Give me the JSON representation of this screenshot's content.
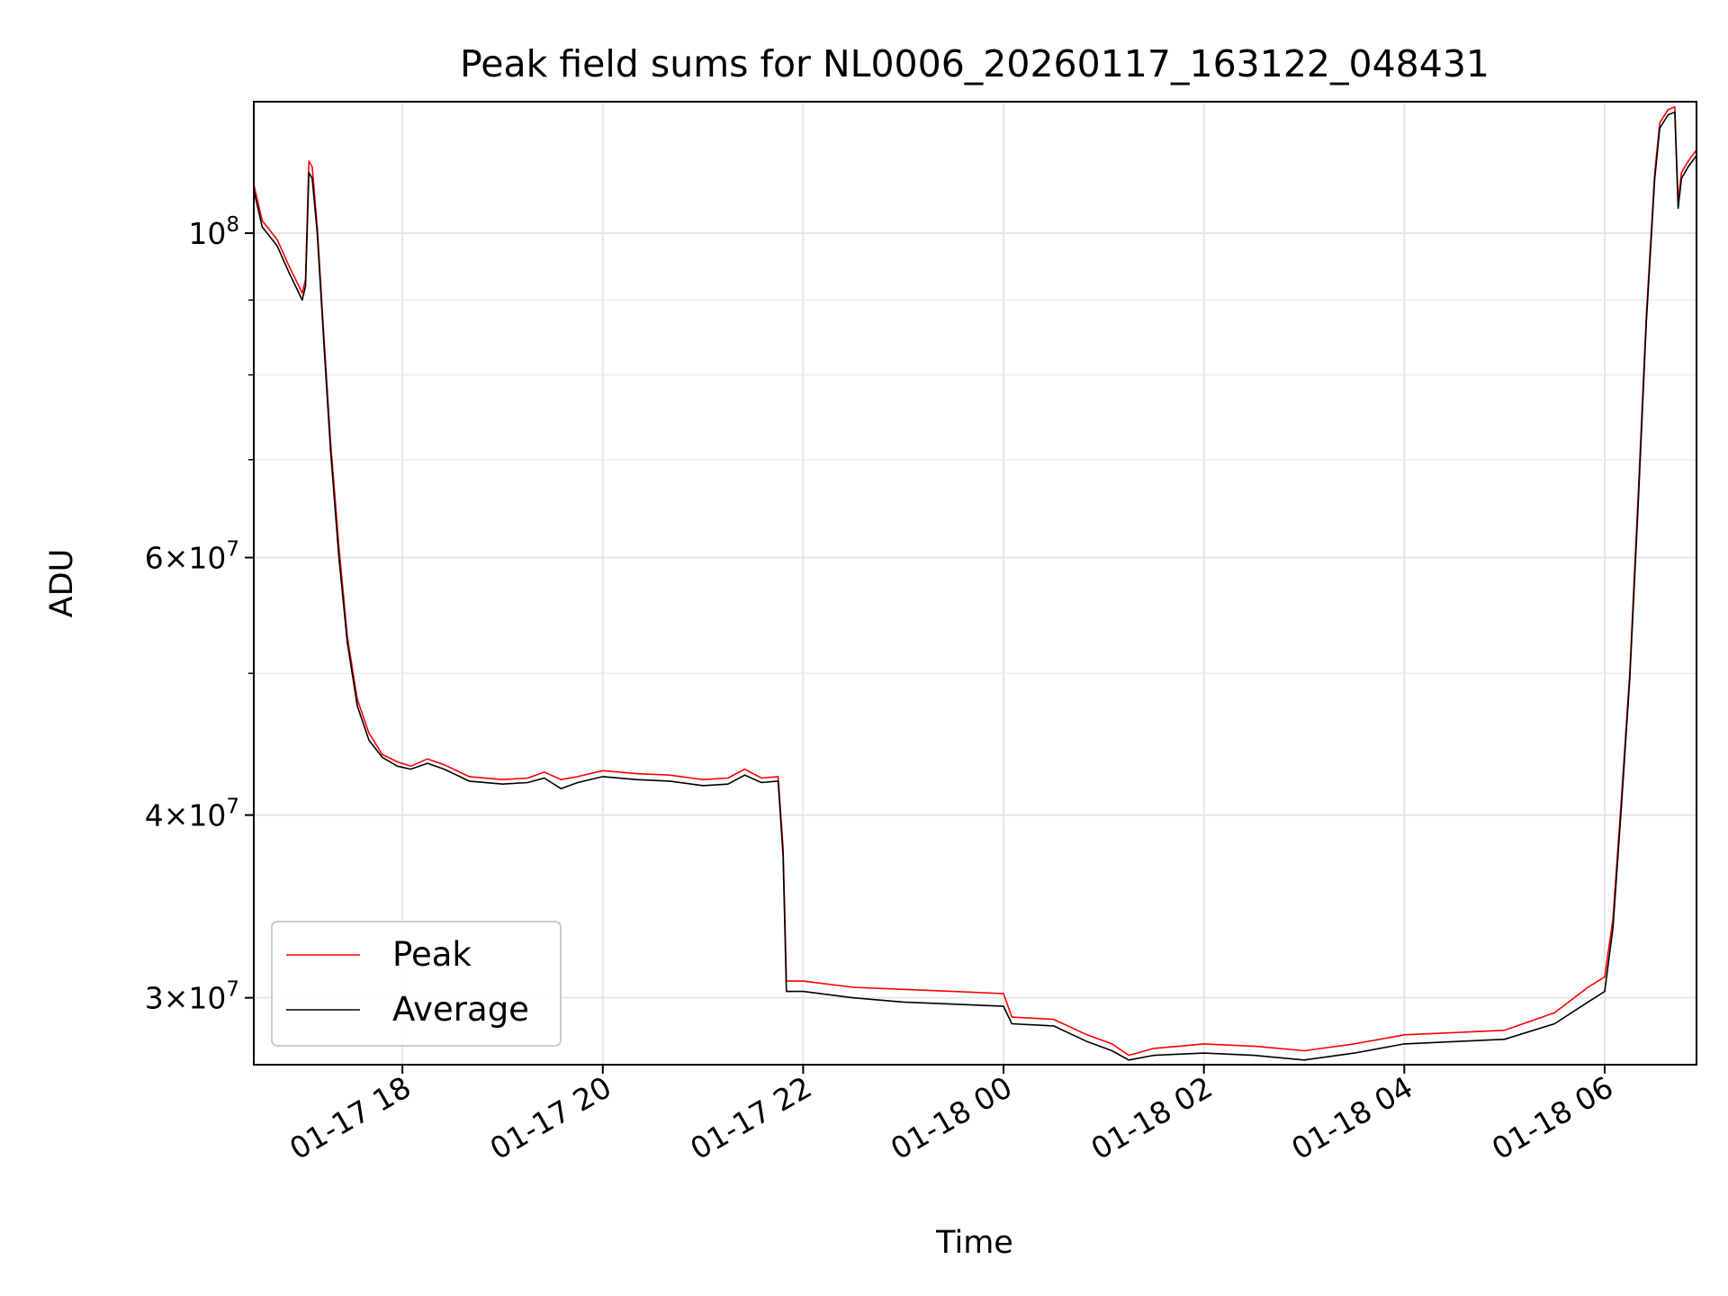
{
  "chart_data": {
    "type": "line",
    "title": "Peak field sums for NL0006_20260117_163122_048431",
    "xlabel": "Time",
    "ylabel": "ADU",
    "y_scale": "log",
    "ylim": [
      27000000,
      123000000
    ],
    "xlim": [
      "2026-01-17 16:31",
      "2026-01-18 06:55"
    ],
    "grid": true,
    "legend_position": "lower-left",
    "x_ticks": [
      {
        "t": "2026-01-17 18:00",
        "label": "01-17 18"
      },
      {
        "t": "2026-01-17 20:00",
        "label": "01-17 20"
      },
      {
        "t": "2026-01-17 22:00",
        "label": "01-17 22"
      },
      {
        "t": "2026-01-18 00:00",
        "label": "01-18 00"
      },
      {
        "t": "2026-01-18 02:00",
        "label": "01-18 02"
      },
      {
        "t": "2026-01-18 04:00",
        "label": "01-18 04"
      },
      {
        "t": "2026-01-18 06:00",
        "label": "01-18 06"
      }
    ],
    "y_ticks": [
      {
        "value": 30000000,
        "mantissa": "3",
        "exp": "7"
      },
      {
        "value": 40000000,
        "mantissa": "4",
        "exp": "7"
      },
      {
        "value": 60000000,
        "mantissa": "6",
        "exp": "7"
      },
      {
        "value": 100000000,
        "mantissa": "",
        "exp": "8"
      }
    ],
    "y_minor_ticks": [
      50000000,
      70000000,
      80000000,
      90000000
    ],
    "series": [
      {
        "name": "Peak",
        "color": "#ff0000",
        "points": [
          [
            "2026-01-17 16:31",
            108000000
          ],
          [
            "2026-01-17 16:36",
            102000000
          ],
          [
            "2026-01-17 16:45",
            99000000
          ],
          [
            "2026-01-17 16:52",
            95000000
          ],
          [
            "2026-01-17 16:58",
            92000000
          ],
          [
            "2026-01-17 17:00",
            91000000
          ],
          [
            "2026-01-17 17:02",
            93000000
          ],
          [
            "2026-01-17 17:04",
            112000000
          ],
          [
            "2026-01-17 17:06",
            111000000
          ],
          [
            "2026-01-17 17:09",
            101000000
          ],
          [
            "2026-01-17 17:13",
            85000000
          ],
          [
            "2026-01-17 17:17",
            72000000
          ],
          [
            "2026-01-17 17:22",
            61000000
          ],
          [
            "2026-01-17 17:27",
            53000000
          ],
          [
            "2026-01-17 17:33",
            48000000
          ],
          [
            "2026-01-17 17:40",
            45500000
          ],
          [
            "2026-01-17 17:48",
            44000000
          ],
          [
            "2026-01-17 17:57",
            43500000
          ],
          [
            "2026-01-17 18:05",
            43200000
          ],
          [
            "2026-01-17 18:15",
            43700000
          ],
          [
            "2026-01-17 18:25",
            43300000
          ],
          [
            "2026-01-17 18:40",
            42500000
          ],
          [
            "2026-01-17 19:00",
            42300000
          ],
          [
            "2026-01-17 19:15",
            42400000
          ],
          [
            "2026-01-17 19:25",
            42800000
          ],
          [
            "2026-01-17 19:35",
            42300000
          ],
          [
            "2026-01-17 19:45",
            42500000
          ],
          [
            "2026-01-17 20:00",
            42900000
          ],
          [
            "2026-01-17 20:20",
            42700000
          ],
          [
            "2026-01-17 20:40",
            42600000
          ],
          [
            "2026-01-17 21:00",
            42300000
          ],
          [
            "2026-01-17 21:15",
            42400000
          ],
          [
            "2026-01-17 21:25",
            43000000
          ],
          [
            "2026-01-17 21:35",
            42400000
          ],
          [
            "2026-01-17 21:45",
            42500000
          ],
          [
            "2026-01-17 21:48",
            38000000
          ],
          [
            "2026-01-17 21:50",
            30800000
          ],
          [
            "2026-01-17 22:00",
            30800000
          ],
          [
            "2026-01-17 22:30",
            30500000
          ],
          [
            "2026-01-17 23:00",
            30400000
          ],
          [
            "2026-01-17 23:30",
            30300000
          ],
          [
            "2026-01-18 00:00",
            30200000
          ],
          [
            "2026-01-18 00:05",
            29100000
          ],
          [
            "2026-01-18 00:30",
            29000000
          ],
          [
            "2026-01-18 00:50",
            28300000
          ],
          [
            "2026-01-18 01:05",
            27900000
          ],
          [
            "2026-01-18 01:15",
            27400000
          ],
          [
            "2026-01-18 01:30",
            27700000
          ],
          [
            "2026-01-18 02:00",
            27900000
          ],
          [
            "2026-01-18 02:30",
            27800000
          ],
          [
            "2026-01-18 03:00",
            27600000
          ],
          [
            "2026-01-18 03:30",
            27900000
          ],
          [
            "2026-01-18 04:00",
            28300000
          ],
          [
            "2026-01-18 04:30",
            28400000
          ],
          [
            "2026-01-18 05:00",
            28500000
          ],
          [
            "2026-01-18 05:30",
            29300000
          ],
          [
            "2026-01-18 05:50",
            30500000
          ],
          [
            "2026-01-18 06:00",
            31000000
          ],
          [
            "2026-01-18 06:05",
            34000000
          ],
          [
            "2026-01-18 06:10",
            41000000
          ],
          [
            "2026-01-18 06:15",
            50000000
          ],
          [
            "2026-01-18 06:20",
            66000000
          ],
          [
            "2026-01-18 06:25",
            88000000
          ],
          [
            "2026-01-18 06:30",
            110000000
          ],
          [
            "2026-01-18 06:33",
            119000000
          ],
          [
            "2026-01-18 06:38",
            121500000
          ],
          [
            "2026-01-18 06:42",
            122000000
          ],
          [
            "2026-01-18 06:44",
            105000000
          ],
          [
            "2026-01-18 06:46",
            110000000
          ],
          [
            "2026-01-18 06:50",
            112000000
          ],
          [
            "2026-01-18 06:55",
            114000000
          ]
        ]
      },
      {
        "name": "Average",
        "color": "#000000",
        "points": [
          [
            "2026-01-17 16:31",
            107000000
          ],
          [
            "2026-01-17 16:36",
            101000000
          ],
          [
            "2026-01-17 16:45",
            98000000
          ],
          [
            "2026-01-17 16:52",
            94000000
          ],
          [
            "2026-01-17 16:58",
            91000000
          ],
          [
            "2026-01-17 17:00",
            90000000
          ],
          [
            "2026-01-17 17:02",
            92000000
          ],
          [
            "2026-01-17 17:04",
            110000000
          ],
          [
            "2026-01-17 17:06",
            109000000
          ],
          [
            "2026-01-17 17:09",
            100000000
          ],
          [
            "2026-01-17 17:13",
            84000000
          ],
          [
            "2026-01-17 17:17",
            71000000
          ],
          [
            "2026-01-17 17:22",
            60000000
          ],
          [
            "2026-01-17 17:27",
            52500000
          ],
          [
            "2026-01-17 17:33",
            47500000
          ],
          [
            "2026-01-17 17:40",
            45000000
          ],
          [
            "2026-01-17 17:48",
            43800000
          ],
          [
            "2026-01-17 17:57",
            43200000
          ],
          [
            "2026-01-17 18:05",
            43000000
          ],
          [
            "2026-01-17 18:15",
            43400000
          ],
          [
            "2026-01-17 18:25",
            43000000
          ],
          [
            "2026-01-17 18:40",
            42200000
          ],
          [
            "2026-01-17 19:00",
            42000000
          ],
          [
            "2026-01-17 19:15",
            42100000
          ],
          [
            "2026-01-17 19:25",
            42400000
          ],
          [
            "2026-01-17 19:35",
            41700000
          ],
          [
            "2026-01-17 19:45",
            42100000
          ],
          [
            "2026-01-17 20:00",
            42500000
          ],
          [
            "2026-01-17 20:20",
            42300000
          ],
          [
            "2026-01-17 20:40",
            42200000
          ],
          [
            "2026-01-17 21:00",
            41900000
          ],
          [
            "2026-01-17 21:15",
            42000000
          ],
          [
            "2026-01-17 21:25",
            42600000
          ],
          [
            "2026-01-17 21:35",
            42100000
          ],
          [
            "2026-01-17 21:45",
            42200000
          ],
          [
            "2026-01-17 21:48",
            37500000
          ],
          [
            "2026-01-17 21:50",
            30300000
          ],
          [
            "2026-01-17 22:00",
            30300000
          ],
          [
            "2026-01-17 22:30",
            30000000
          ],
          [
            "2026-01-17 23:00",
            29800000
          ],
          [
            "2026-01-17 23:30",
            29700000
          ],
          [
            "2026-01-18 00:00",
            29600000
          ],
          [
            "2026-01-18 00:05",
            28800000
          ],
          [
            "2026-01-18 00:30",
            28700000
          ],
          [
            "2026-01-18 00:50",
            28000000
          ],
          [
            "2026-01-18 01:05",
            27600000
          ],
          [
            "2026-01-18 01:15",
            27200000
          ],
          [
            "2026-01-18 01:30",
            27400000
          ],
          [
            "2026-01-18 02:00",
            27500000
          ],
          [
            "2026-01-18 02:30",
            27400000
          ],
          [
            "2026-01-18 03:00",
            27200000
          ],
          [
            "2026-01-18 03:30",
            27500000
          ],
          [
            "2026-01-18 04:00",
            27900000
          ],
          [
            "2026-01-18 04:30",
            28000000
          ],
          [
            "2026-01-18 05:00",
            28100000
          ],
          [
            "2026-01-18 05:30",
            28800000
          ],
          [
            "2026-01-18 05:50",
            29800000
          ],
          [
            "2026-01-18 06:00",
            30300000
          ],
          [
            "2026-01-18 06:05",
            33500000
          ],
          [
            "2026-01-18 06:10",
            40500000
          ],
          [
            "2026-01-18 06:15",
            49500000
          ],
          [
            "2026-01-18 06:20",
            65000000
          ],
          [
            "2026-01-18 06:25",
            87000000
          ],
          [
            "2026-01-18 06:30",
            109000000
          ],
          [
            "2026-01-18 06:33",
            118000000
          ],
          [
            "2026-01-18 06:38",
            120500000
          ],
          [
            "2026-01-18 06:42",
            121000000
          ],
          [
            "2026-01-18 06:44",
            104000000
          ],
          [
            "2026-01-18 06:46",
            109000000
          ],
          [
            "2026-01-18 06:50",
            111000000
          ],
          [
            "2026-01-18 06:55",
            113000000
          ]
        ]
      }
    ]
  }
}
